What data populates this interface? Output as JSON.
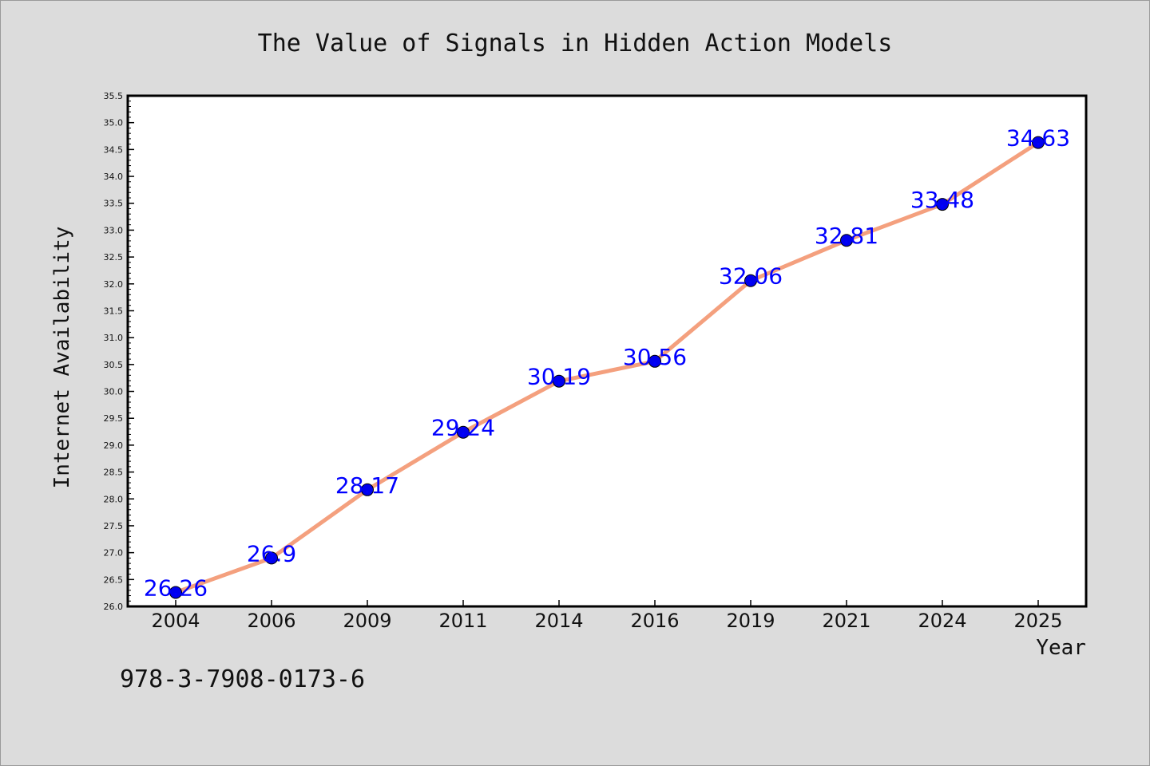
{
  "footer": {
    "code": "978-3-7908-0173-6"
  },
  "colors": {
    "background": "#dcdcdc",
    "plot_background": "#ffffff",
    "line": "#f4a07e",
    "marker": "#0000ee",
    "data_label": "#0000ff"
  },
  "chart_data": {
    "type": "line",
    "title": "The Value of Signals in Hidden Action Models",
    "xlabel": "Year",
    "ylabel": "Internet Availability",
    "categories": [
      "2004",
      "2006",
      "2009",
      "2011",
      "2014",
      "2016",
      "2019",
      "2021",
      "2024",
      "2025"
    ],
    "series": [
      {
        "values": [
          26.26,
          26.9,
          28.17,
          29.24,
          30.19,
          30.56,
          32.06,
          32.81,
          33.48,
          34.63
        ],
        "labels": [
          "26.26",
          "26.9",
          "28.17",
          "29.24",
          "30.19",
          "30.56",
          "32.06",
          "32.81",
          "33.48",
          "34.63"
        ]
      }
    ],
    "ylim": [
      26.0,
      35.5
    ],
    "yticks": [
      "26.0",
      "26.5",
      "27.0",
      "27.5",
      "28.0",
      "28.5",
      "29.0",
      "29.5",
      "30.0",
      "30.5",
      "31.0",
      "31.5",
      "32.0",
      "32.5",
      "33.0",
      "33.5",
      "34.0",
      "34.5",
      "35.0",
      "35.5"
    ],
    "grid": false,
    "legend": "none"
  }
}
